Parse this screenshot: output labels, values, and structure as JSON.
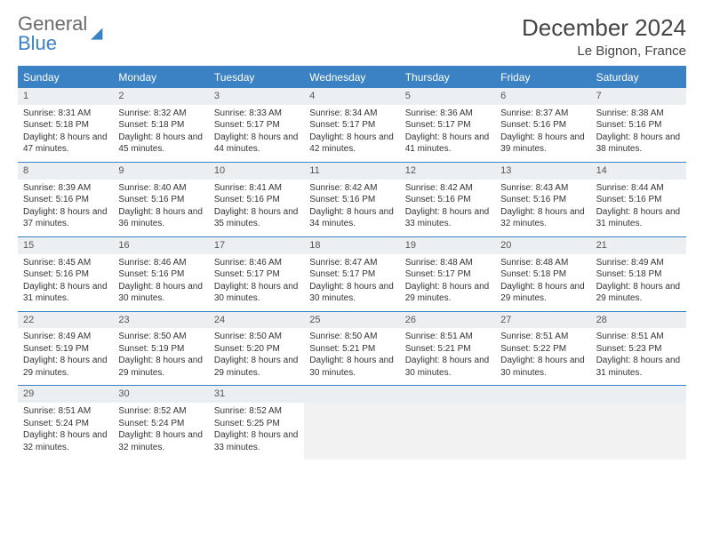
{
  "brand": {
    "line1": "General",
    "line2": "Blue"
  },
  "title": "December 2024",
  "location": "Le Bignon, France",
  "colors": {
    "accent": "#3b82c4",
    "header_bg": "#3b82c4",
    "header_text": "#ffffff",
    "daynum_bg": "#eceff1",
    "border": "#3b82c4",
    "text": "#333333",
    "logo_gray": "#6b6b6b"
  },
  "weekdays": [
    "Sunday",
    "Monday",
    "Tuesday",
    "Wednesday",
    "Thursday",
    "Friday",
    "Saturday"
  ],
  "weeks": [
    [
      {
        "n": "1",
        "sr": "Sunrise: 8:31 AM",
        "ss": "Sunset: 5:18 PM",
        "dl": "Daylight: 8 hours and 47 minutes."
      },
      {
        "n": "2",
        "sr": "Sunrise: 8:32 AM",
        "ss": "Sunset: 5:18 PM",
        "dl": "Daylight: 8 hours and 45 minutes."
      },
      {
        "n": "3",
        "sr": "Sunrise: 8:33 AM",
        "ss": "Sunset: 5:17 PM",
        "dl": "Daylight: 8 hours and 44 minutes."
      },
      {
        "n": "4",
        "sr": "Sunrise: 8:34 AM",
        "ss": "Sunset: 5:17 PM",
        "dl": "Daylight: 8 hours and 42 minutes."
      },
      {
        "n": "5",
        "sr": "Sunrise: 8:36 AM",
        "ss": "Sunset: 5:17 PM",
        "dl": "Daylight: 8 hours and 41 minutes."
      },
      {
        "n": "6",
        "sr": "Sunrise: 8:37 AM",
        "ss": "Sunset: 5:16 PM",
        "dl": "Daylight: 8 hours and 39 minutes."
      },
      {
        "n": "7",
        "sr": "Sunrise: 8:38 AM",
        "ss": "Sunset: 5:16 PM",
        "dl": "Daylight: 8 hours and 38 minutes."
      }
    ],
    [
      {
        "n": "8",
        "sr": "Sunrise: 8:39 AM",
        "ss": "Sunset: 5:16 PM",
        "dl": "Daylight: 8 hours and 37 minutes."
      },
      {
        "n": "9",
        "sr": "Sunrise: 8:40 AM",
        "ss": "Sunset: 5:16 PM",
        "dl": "Daylight: 8 hours and 36 minutes."
      },
      {
        "n": "10",
        "sr": "Sunrise: 8:41 AM",
        "ss": "Sunset: 5:16 PM",
        "dl": "Daylight: 8 hours and 35 minutes."
      },
      {
        "n": "11",
        "sr": "Sunrise: 8:42 AM",
        "ss": "Sunset: 5:16 PM",
        "dl": "Daylight: 8 hours and 34 minutes."
      },
      {
        "n": "12",
        "sr": "Sunrise: 8:42 AM",
        "ss": "Sunset: 5:16 PM",
        "dl": "Daylight: 8 hours and 33 minutes."
      },
      {
        "n": "13",
        "sr": "Sunrise: 8:43 AM",
        "ss": "Sunset: 5:16 PM",
        "dl": "Daylight: 8 hours and 32 minutes."
      },
      {
        "n": "14",
        "sr": "Sunrise: 8:44 AM",
        "ss": "Sunset: 5:16 PM",
        "dl": "Daylight: 8 hours and 31 minutes."
      }
    ],
    [
      {
        "n": "15",
        "sr": "Sunrise: 8:45 AM",
        "ss": "Sunset: 5:16 PM",
        "dl": "Daylight: 8 hours and 31 minutes."
      },
      {
        "n": "16",
        "sr": "Sunrise: 8:46 AM",
        "ss": "Sunset: 5:16 PM",
        "dl": "Daylight: 8 hours and 30 minutes."
      },
      {
        "n": "17",
        "sr": "Sunrise: 8:46 AM",
        "ss": "Sunset: 5:17 PM",
        "dl": "Daylight: 8 hours and 30 minutes."
      },
      {
        "n": "18",
        "sr": "Sunrise: 8:47 AM",
        "ss": "Sunset: 5:17 PM",
        "dl": "Daylight: 8 hours and 30 minutes."
      },
      {
        "n": "19",
        "sr": "Sunrise: 8:48 AM",
        "ss": "Sunset: 5:17 PM",
        "dl": "Daylight: 8 hours and 29 minutes."
      },
      {
        "n": "20",
        "sr": "Sunrise: 8:48 AM",
        "ss": "Sunset: 5:18 PM",
        "dl": "Daylight: 8 hours and 29 minutes."
      },
      {
        "n": "21",
        "sr": "Sunrise: 8:49 AM",
        "ss": "Sunset: 5:18 PM",
        "dl": "Daylight: 8 hours and 29 minutes."
      }
    ],
    [
      {
        "n": "22",
        "sr": "Sunrise: 8:49 AM",
        "ss": "Sunset: 5:19 PM",
        "dl": "Daylight: 8 hours and 29 minutes."
      },
      {
        "n": "23",
        "sr": "Sunrise: 8:50 AM",
        "ss": "Sunset: 5:19 PM",
        "dl": "Daylight: 8 hours and 29 minutes."
      },
      {
        "n": "24",
        "sr": "Sunrise: 8:50 AM",
        "ss": "Sunset: 5:20 PM",
        "dl": "Daylight: 8 hours and 29 minutes."
      },
      {
        "n": "25",
        "sr": "Sunrise: 8:50 AM",
        "ss": "Sunset: 5:21 PM",
        "dl": "Daylight: 8 hours and 30 minutes."
      },
      {
        "n": "26",
        "sr": "Sunrise: 8:51 AM",
        "ss": "Sunset: 5:21 PM",
        "dl": "Daylight: 8 hours and 30 minutes."
      },
      {
        "n": "27",
        "sr": "Sunrise: 8:51 AM",
        "ss": "Sunset: 5:22 PM",
        "dl": "Daylight: 8 hours and 30 minutes."
      },
      {
        "n": "28",
        "sr": "Sunrise: 8:51 AM",
        "ss": "Sunset: 5:23 PM",
        "dl": "Daylight: 8 hours and 31 minutes."
      }
    ],
    [
      {
        "n": "29",
        "sr": "Sunrise: 8:51 AM",
        "ss": "Sunset: 5:24 PM",
        "dl": "Daylight: 8 hours and 32 minutes."
      },
      {
        "n": "30",
        "sr": "Sunrise: 8:52 AM",
        "ss": "Sunset: 5:24 PM",
        "dl": "Daylight: 8 hours and 32 minutes."
      },
      {
        "n": "31",
        "sr": "Sunrise: 8:52 AM",
        "ss": "Sunset: 5:25 PM",
        "dl": "Daylight: 8 hours and 33 minutes."
      },
      null,
      null,
      null,
      null
    ]
  ]
}
